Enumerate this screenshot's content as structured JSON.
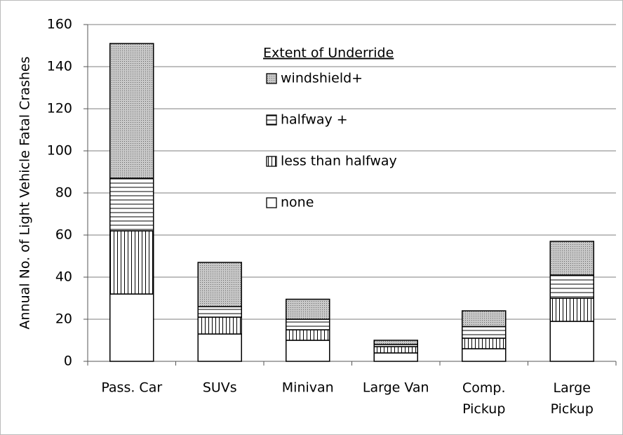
{
  "chart_data": {
    "type": "stacked_bar",
    "y_label": "Annual No. of Light Vehicle Fatal Crashes",
    "legend_title": "Extent of Underride",
    "categories": [
      "Pass. Car",
      "SUVs",
      "Minivan",
      "Large Van",
      "Comp. Pickup",
      "Large Pickup"
    ],
    "series": [
      {
        "name": "none",
        "pattern": "solid",
        "color": "#ffffff",
        "values": [
          32,
          13,
          10,
          4,
          6,
          19
        ]
      },
      {
        "name": "less than halfway",
        "pattern": "vertical",
        "color": "#ffffff",
        "values": [
          30,
          8,
          5,
          3,
          5,
          11
        ]
      },
      {
        "name": "halfway +",
        "pattern": "horizontal",
        "color": "#ffffff",
        "values": [
          25,
          5,
          5,
          1,
          5.5,
          11
        ]
      },
      {
        "name": "windshield+",
        "pattern": "dots",
        "color": "#bdbdbd",
        "values": [
          64,
          21,
          9.5,
          2,
          7.5,
          16
        ]
      }
    ],
    "ylim": [
      0,
      160
    ],
    "yticks": [
      0,
      20,
      40,
      60,
      80,
      100,
      120,
      140,
      160
    ],
    "grid": true
  }
}
